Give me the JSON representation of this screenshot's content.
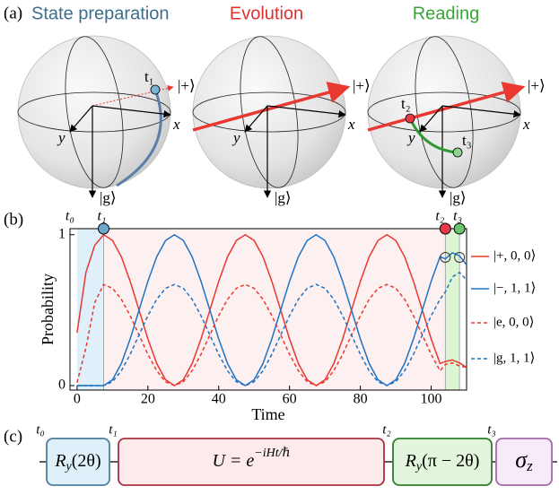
{
  "panel_labels": [
    "(a)",
    "(b)",
    "(c)"
  ],
  "bloch": [
    {
      "title": "State preparation",
      "color": "#3d6e8a",
      "labels": {
        "x": "x",
        "y": "y",
        "down": "|g⟩",
        "plus": "|+⟩",
        "point1": "t₁"
      }
    },
    {
      "title": "Evolution",
      "color": "#e03030",
      "labels": {
        "x": "x",
        "y": "y",
        "down": "|g⟩",
        "plus": "|+⟩"
      }
    },
    {
      "title": "Reading",
      "color": "#38a538",
      "labels": {
        "x": "x",
        "y": "y",
        "down": "|g⟩",
        "plus": "|+⟩",
        "point1": "t₂",
        "point2": "t₃"
      }
    }
  ],
  "chart_data": {
    "type": "line",
    "xlabel": "Time",
    "ylabel": "Probability",
    "x": [
      0,
      2.5,
      5,
      7.5,
      10,
      12.5,
      15,
      17.5,
      20,
      22.5,
      25,
      27.5,
      30,
      32.5,
      35,
      37.5,
      40,
      42.5,
      45,
      47.5,
      50,
      52.5,
      55,
      57.5,
      60,
      62.5,
      65,
      67.5,
      70,
      72.5,
      75,
      77.5,
      80,
      82.5,
      85,
      87.5,
      90,
      92.5,
      95,
      97.5,
      100,
      102.5,
      104,
      106,
      108,
      110
    ],
    "series": [
      {
        "name": "|+, 0, 0⟩",
        "color": "#e8382f",
        "style": "solid",
        "values": [
          0.35,
          0.75,
          0.93,
          1,
          0.962,
          0.854,
          0.691,
          0.5,
          0.309,
          0.146,
          0.038,
          0,
          0.038,
          0.146,
          0.309,
          0.5,
          0.691,
          0.854,
          0.962,
          1,
          0.962,
          0.854,
          0.691,
          0.5,
          0.309,
          0.146,
          0.038,
          0,
          0.038,
          0.146,
          0.309,
          0.5,
          0.691,
          0.854,
          0.962,
          1,
          0.962,
          0.854,
          0.691,
          0.5,
          0.309,
          0.146,
          0.16,
          0.17,
          0.15,
          0.12
        ]
      },
      {
        "name": "|−, 1, 1⟩",
        "color": "#1f72c4",
        "style": "solid",
        "values": [
          0,
          0,
          0,
          0,
          0.038,
          0.146,
          0.309,
          0.5,
          0.691,
          0.854,
          0.962,
          1,
          0.962,
          0.854,
          0.691,
          0.5,
          0.309,
          0.146,
          0.038,
          0,
          0.038,
          0.146,
          0.309,
          0.5,
          0.691,
          0.854,
          0.962,
          1,
          0.962,
          0.854,
          0.691,
          0.5,
          0.309,
          0.146,
          0.038,
          0,
          0.038,
          0.146,
          0.309,
          0.5,
          0.691,
          0.854,
          0.84,
          0.88,
          0.86,
          0.8
        ]
      },
      {
        "name": "|e, 0, 0⟩",
        "color": "#e8382f",
        "style": "dashed",
        "values": [
          0.02,
          0.25,
          0.55,
          0.67,
          0.645,
          0.572,
          0.463,
          0.335,
          0.207,
          0.098,
          0.025,
          0,
          0.025,
          0.098,
          0.207,
          0.335,
          0.463,
          0.572,
          0.645,
          0.67,
          0.645,
          0.572,
          0.463,
          0.335,
          0.207,
          0.098,
          0.025,
          0,
          0.025,
          0.098,
          0.207,
          0.335,
          0.463,
          0.572,
          0.645,
          0.67,
          0.645,
          0.572,
          0.463,
          0.335,
          0.207,
          0.098,
          0.14,
          0.15,
          0.13,
          0.12
        ]
      },
      {
        "name": "|g, 1, 1⟩",
        "color": "#1f72c4",
        "style": "dashed",
        "values": [
          0,
          0,
          0,
          0,
          0.025,
          0.098,
          0.207,
          0.335,
          0.463,
          0.572,
          0.645,
          0.67,
          0.645,
          0.572,
          0.463,
          0.335,
          0.207,
          0.098,
          0.025,
          0,
          0.025,
          0.098,
          0.207,
          0.335,
          0.463,
          0.572,
          0.645,
          0.67,
          0.645,
          0.572,
          0.463,
          0.335,
          0.207,
          0.098,
          0.025,
          0,
          0.025,
          0.098,
          0.207,
          0.335,
          0.463,
          0.572,
          0.62,
          0.72,
          0.75,
          0.7
        ]
      }
    ],
    "events": [
      {
        "label": "t₀",
        "x": 0
      },
      {
        "label": "t₁",
        "x": 7.5,
        "color": "#6fa8cc"
      },
      {
        "label": "t₂",
        "x": 104,
        "color": "#e8384a"
      },
      {
        "label": "t₃",
        "x": 108,
        "color": "#6cc46c"
      }
    ],
    "region_colors": [
      "#dff0fa",
      "#fdf0f0",
      "#dcf5d2"
    ],
    "readout_points": {
      "x": [
        104,
        108
      ],
      "values": [
        0.85,
        0.85
      ]
    },
    "xlim": [
      -2,
      110
    ],
    "ylim": [
      -0.03,
      1.04
    ],
    "xticks": [
      0,
      20,
      40,
      60,
      80,
      100
    ],
    "yticks": [
      0,
      1
    ]
  },
  "circuit": {
    "time_labels": [
      "t₀",
      "t₁",
      "t₂",
      "t₃"
    ],
    "gates": [
      {
        "symbol": "R",
        "sub": "y",
        "arg": "(2θ)"
      },
      {
        "lhs": "U = e",
        "sup": "−iHt/ℏ"
      },
      {
        "symbol": "R",
        "sub": "y",
        "arg": "(π − 2θ)"
      },
      {
        "symbol": "σ",
        "sub": "z"
      }
    ]
  }
}
